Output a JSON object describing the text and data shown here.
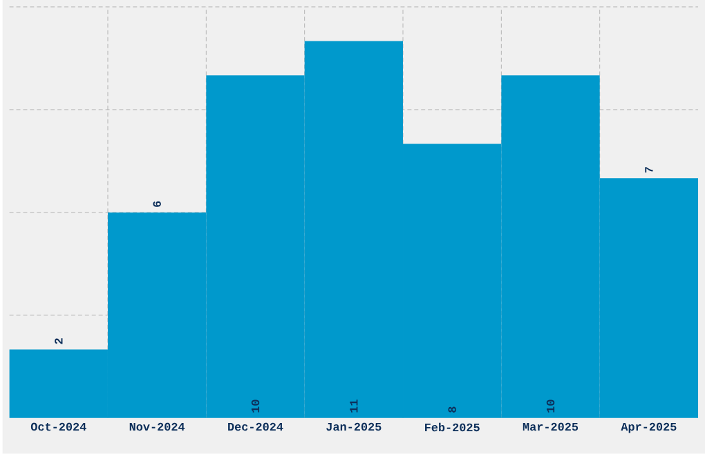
{
  "chart_data": {
    "type": "bar",
    "categories": [
      "Oct-2024",
      "Nov-2024",
      "Dec-2024",
      "Jan-2025",
      "Feb-2025",
      "Mar-2025",
      "Apr-2025"
    ],
    "values": [
      2,
      6,
      10,
      11,
      8,
      10,
      7
    ],
    "color": "#0099cc",
    "data_labels": true,
    "grid": true,
    "tick_labels": "x",
    "ylim": [
      0,
      12
    ],
    "yticks": [
      {
        "value": 3,
        "label": null
      },
      {
        "value": 6,
        "label": null
      },
      {
        "value": 9,
        "label": null
      },
      {
        "value": 12,
        "label": null
      }
    ]
  }
}
